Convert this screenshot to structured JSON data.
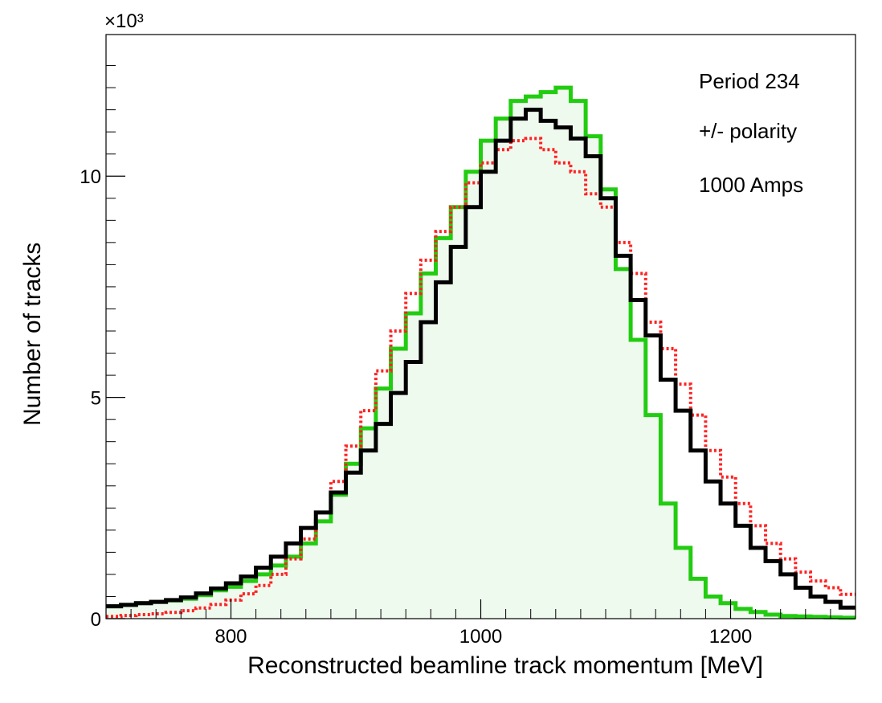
{
  "chart_data": {
    "type": "line",
    "subtype": "step-histogram",
    "xlabel": "Reconstructed beamline track momentum [MeV]",
    "ylabel": "Number of tracks",
    "y_multiplier_label": "×10³",
    "xlim": [
      700,
      1300
    ],
    "ylim": [
      0,
      13.2
    ],
    "y_units": "thousands of tracks",
    "x_ticks": [
      800,
      1000,
      1200
    ],
    "y_ticks": [
      0,
      5,
      10
    ],
    "grid": false,
    "annotations": [
      "Period 234",
      "+/- polarity",
      "1000 Amps"
    ],
    "bin_edges": [
      700,
      712,
      724,
      736,
      748,
      760,
      772,
      784,
      796,
      808,
      820,
      832,
      844,
      856,
      868,
      880,
      892,
      904,
      916,
      928,
      940,
      952,
      964,
      976,
      988,
      1000,
      1012,
      1024,
      1036,
      1048,
      1060,
      1072,
      1084,
      1096,
      1108,
      1120,
      1132,
      1144,
      1156,
      1168,
      1180,
      1192,
      1204,
      1216,
      1228,
      1240,
      1252,
      1264,
      1276,
      1288,
      1300
    ],
    "series": [
      {
        "color": "#22cc11",
        "style": "solid",
        "fill": "#effaef",
        "values": [
          0.28,
          0.31,
          0.35,
          0.38,
          0.41,
          0.45,
          0.53,
          0.64,
          0.72,
          0.85,
          1.0,
          1.2,
          1.4,
          1.7,
          2.2,
          2.8,
          3.5,
          4.3,
          5.2,
          6.1,
          6.9,
          7.8,
          8.6,
          9.3,
          10.1,
          10.8,
          11.3,
          11.7,
          11.8,
          11.9,
          12.0,
          11.7,
          10.9,
          9.7,
          7.9,
          6.3,
          4.6,
          2.6,
          1.6,
          0.9,
          0.5,
          0.35,
          0.22,
          0.15,
          0.09,
          0.06,
          0.05,
          0.04,
          0.03,
          0.02
        ]
      },
      {
        "color": "#000000",
        "style": "solid",
        "values": [
          0.28,
          0.31,
          0.35,
          0.38,
          0.42,
          0.48,
          0.57,
          0.68,
          0.8,
          0.95,
          1.15,
          1.4,
          1.7,
          2.05,
          2.4,
          2.85,
          3.3,
          3.8,
          4.4,
          5.1,
          5.8,
          6.7,
          7.6,
          8.4,
          9.3,
          10.1,
          10.8,
          11.3,
          11.5,
          11.25,
          11.1,
          10.85,
          10.45,
          9.5,
          8.2,
          7.2,
          6.4,
          5.4,
          4.7,
          3.8,
          3.1,
          2.6,
          2.1,
          1.6,
          1.3,
          1.0,
          0.7,
          0.5,
          0.38,
          0.25
        ]
      },
      {
        "color": "#ff2222",
        "style": "dotted",
        "values": [
          0.05,
          0.07,
          0.09,
          0.11,
          0.14,
          0.18,
          0.24,
          0.32,
          0.42,
          0.56,
          0.75,
          1.0,
          1.35,
          1.8,
          2.4,
          3.1,
          3.9,
          4.7,
          5.6,
          6.5,
          7.35,
          8.1,
          8.75,
          9.3,
          9.85,
          10.3,
          10.6,
          10.8,
          10.85,
          10.6,
          10.3,
          10.1,
          9.6,
          9.3,
          8.5,
          7.8,
          6.7,
          6.1,
          5.3,
          4.6,
          3.8,
          3.2,
          2.6,
          2.1,
          1.7,
          1.35,
          1.05,
          0.85,
          0.7,
          0.55
        ]
      }
    ]
  }
}
